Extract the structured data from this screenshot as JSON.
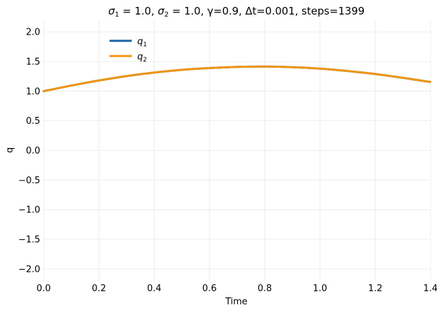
{
  "chart_data": {
    "type": "line",
    "title": "",
    "title_parts": {
      "sigma1_symbol": "σ",
      "sigma1_sub": "1",
      "sigma1_value": " = 1.0, ",
      "sigma2_symbol": "σ",
      "sigma2_sub": "2",
      "sigma2_value": " = 1.0, γ=0.9, Δt=0.001, steps=1399"
    },
    "xlabel": "Time",
    "ylabel": "q",
    "xlim": [
      0.0,
      1.4
    ],
    "ylim": [
      -2.2,
      2.2
    ],
    "x_ticks": [
      "0.0",
      "0.2",
      "0.4",
      "0.6",
      "0.8",
      "1.0",
      "1.2",
      "1.4"
    ],
    "y_ticks": [
      "−2.0",
      "−1.5",
      "−1.0",
      "−0.5",
      "0.0",
      "0.5",
      "1.0",
      "1.5",
      "2.0"
    ],
    "grid": true,
    "legend_position": "upper-left",
    "series": [
      {
        "name": "q",
        "name_sub": "1",
        "color": "#1764ab",
        "x": [
          0.0,
          0.1,
          0.2,
          0.3,
          0.4,
          0.5,
          0.6,
          0.7,
          0.8,
          0.9,
          1.0,
          1.1,
          1.2,
          1.3,
          1.399
        ],
        "y": [
          1.0,
          1.095,
          1.18,
          1.255,
          1.315,
          1.36,
          1.39,
          1.41,
          1.415,
          1.405,
          1.38,
          1.34,
          1.29,
          1.225,
          1.155
        ]
      },
      {
        "name": "q",
        "name_sub": "2",
        "color": "#f0960f",
        "x": [
          0.0,
          0.1,
          0.2,
          0.3,
          0.4,
          0.5,
          0.6,
          0.7,
          0.8,
          0.9,
          1.0,
          1.1,
          1.2,
          1.3,
          1.399
        ],
        "y": [
          1.0,
          1.095,
          1.18,
          1.255,
          1.315,
          1.36,
          1.39,
          1.41,
          1.415,
          1.405,
          1.38,
          1.34,
          1.29,
          1.225,
          1.155
        ]
      }
    ]
  }
}
